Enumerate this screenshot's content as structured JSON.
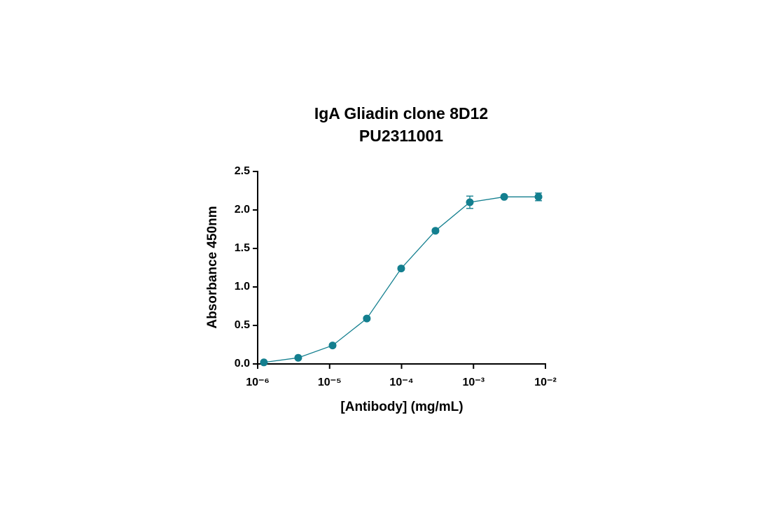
{
  "chart_data": {
    "type": "line",
    "title": "IgA Gliadin clone 8D12",
    "subtitle": "PU2311001",
    "x_label": "[Antibody] (mg/mL)",
    "y_label": "Absorbance 450nm",
    "x": [
      1.22e-06,
      3.66e-06,
      1.1e-05,
      3.29e-05,
      9.88e-05,
      0.000296,
      0.000889,
      0.00267,
      0.008
    ],
    "series": [
      {
        "color": "#137f8f",
        "values": [
          0.02,
          0.08,
          0.24,
          0.59,
          1.24,
          1.73,
          2.1,
          2.17,
          2.17
        ],
        "errors": [
          0.01,
          0.01,
          0.02,
          0.02,
          0.02,
          0.02,
          0.08,
          0.02,
          0.05
        ]
      }
    ],
    "x_log": true,
    "xlim": [
      1e-06,
      0.01
    ],
    "xticks": [
      {
        "value": 1e-06,
        "label": "10⁻⁶"
      },
      {
        "value": 1e-05,
        "label": "10⁻⁵"
      },
      {
        "value": 0.0001,
        "label": "10⁻⁴"
      },
      {
        "value": 0.001,
        "label": "10⁻³"
      },
      {
        "value": 0.01,
        "label": "10⁻²"
      }
    ],
    "ylim": [
      0,
      2.5
    ],
    "yticks": [
      {
        "value": 0,
        "label": "0.0"
      },
      0.5,
      {
        "value": 1,
        "label": "1.0"
      },
      1.5,
      {
        "value": 2,
        "label": "2.0"
      },
      2.5
    ]
  }
}
